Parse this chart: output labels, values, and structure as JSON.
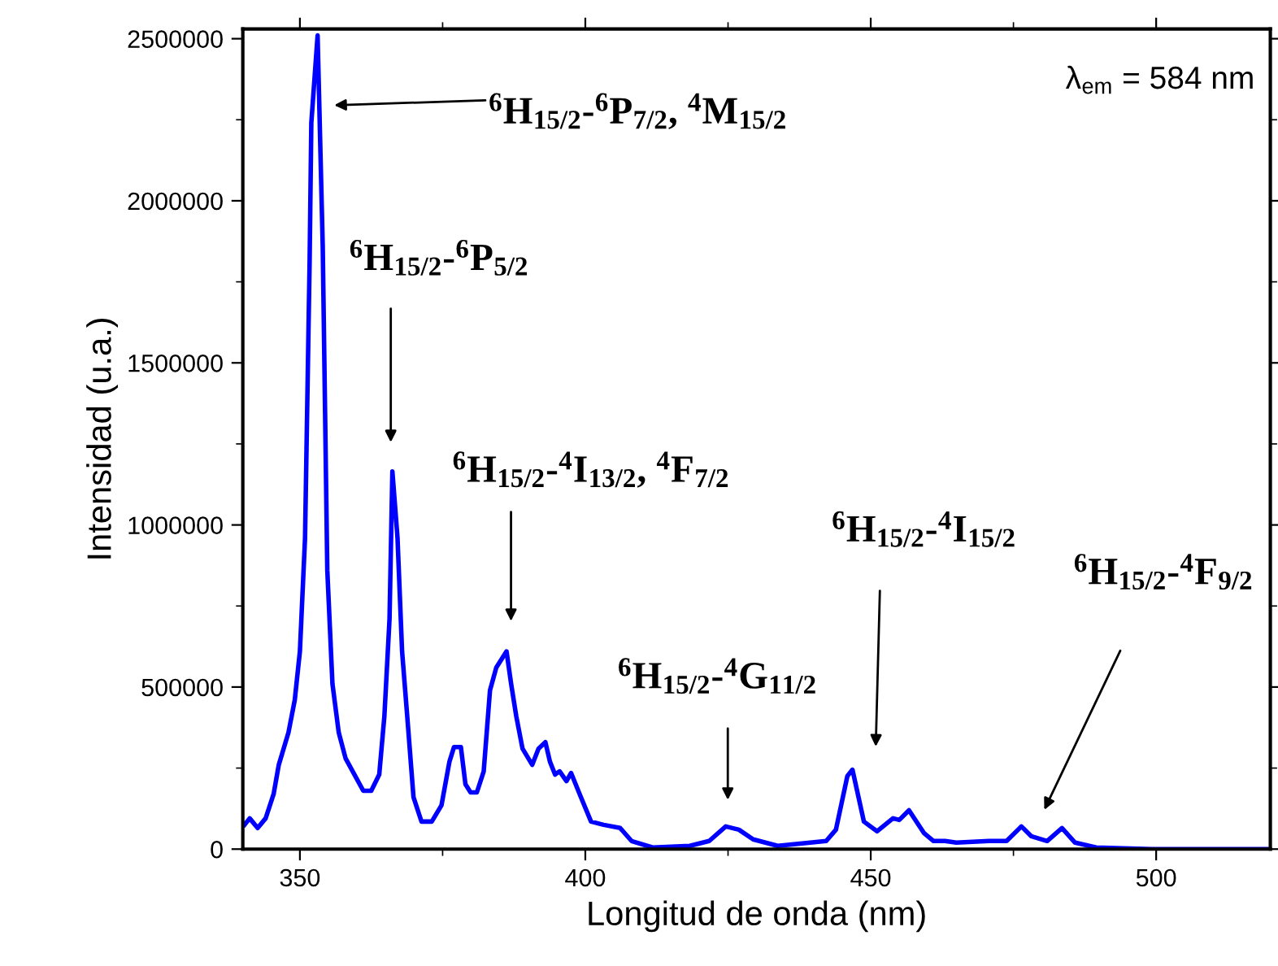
{
  "chart_data": {
    "type": "line",
    "xlabel": "Longitud de onda (nm)",
    "ylabel": "Intensidad (u.a.)",
    "x": [
      340.3,
      341.2,
      342.6,
      344.0,
      345.4,
      346.3,
      348.0,
      349.1,
      350.0,
      350.9,
      351.7,
      352.0,
      353.1,
      354.0,
      354.8,
      355.7,
      356.8,
      358.0,
      359.4,
      361.1,
      362.5,
      363.9,
      364.8,
      365.7,
      366.2,
      367.1,
      367.9,
      368.8,
      369.9,
      371.3,
      373.1,
      374.8,
      376.2,
      377.0,
      378.2,
      379.0,
      379.9,
      381.0,
      382.2,
      383.3,
      384.4,
      386.2,
      387.0,
      387.9,
      389.0,
      390.7,
      391.8,
      393.0,
      393.8,
      394.7,
      395.5,
      396.7,
      397.5,
      399.0,
      401.0,
      403.2,
      406.1,
      408.1,
      411.8,
      418.3,
      421.7,
      424.6,
      426.9,
      429.4,
      433.7,
      439.4,
      442.2,
      443.9,
      445.9,
      446.8,
      448.8,
      451.1,
      453.9,
      455.0,
      456.7,
      459.3,
      461.0,
      463.0,
      465.0,
      470.7,
      473.8,
      476.4,
      478.1,
      480.9,
      483.5,
      485.8,
      489.5,
      499.2,
      520
    ],
    "series": [
      {
        "color": "#0000ff",
        "values": [
          75000,
          95000,
          65000,
          95000,
          170000,
          260000,
          360000,
          460000,
          610000,
          960000,
          1810000,
          2240000,
          2510000,
          1860000,
          860000,
          510000,
          360000,
          280000,
          235000,
          180000,
          180000,
          230000,
          410000,
          710000,
          1165000,
          960000,
          610000,
          410000,
          160000,
          85000,
          85000,
          135000,
          270000,
          315000,
          315000,
          200000,
          175000,
          175000,
          240000,
          490000,
          560000,
          610000,
          510000,
          410000,
          310000,
          260000,
          310000,
          330000,
          270000,
          230000,
          240000,
          210000,
          235000,
          170000,
          85000,
          75000,
          65000,
          25000,
          5000,
          10000,
          25000,
          70000,
          60000,
          30000,
          10000,
          20000,
          25000,
          60000,
          225000,
          245000,
          85000,
          55000,
          95000,
          90000,
          120000,
          50000,
          25000,
          25000,
          20000,
          25000,
          25000,
          70000,
          40000,
          25000,
          65000,
          20000,
          5000,
          0,
          0
        ]
      }
    ],
    "xlim": [
      340,
      520
    ],
    "xticks": [
      350,
      400,
      450,
      500
    ],
    "ylim": [
      0,
      2530000
    ],
    "yticks": [
      0,
      500000,
      1000000,
      1500000,
      2000000,
      2500000
    ],
    "grid": false,
    "marker": "none",
    "line_style": "solid",
    "annotations": [
      "$^{6}$H$_{15/2}$-$^{6}$P$_{7/2}$, $^{4}$M$_{15/2}$",
      "$^{6}$H$_{15/2}$-$^{6}$P$_{5/2}$",
      "$^{6}$H$_{15/2}$-$^{4}$I$_{13/2}$, $^{4}$F$_{7/2}$",
      "$^{6}$H$_{15/2}$-$^{4}$G$_{11/2}$",
      "$^{6}$H$_{15/2}$-$^{4}$I$_{15/2}$",
      "$^{6}$H$_{15/2}$-$^{4}$F$_{9/2}$",
      "λ$_{em}$ = 584 nm"
    ]
  }
}
